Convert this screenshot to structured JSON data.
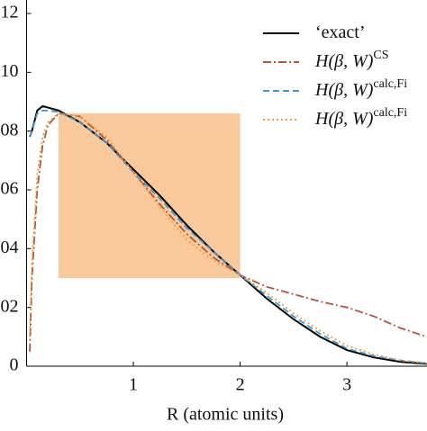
{
  "chart_data": {
    "type": "line",
    "x_label": "R (atomic units)",
    "x": [
      0.03,
      0.05,
      0.1,
      0.15,
      0.2,
      0.3,
      0.5,
      0.75,
      1.0,
      1.25,
      1.5,
      1.75,
      2.0,
      2.25,
      2.5,
      2.75,
      3.0,
      3.25,
      3.5,
      3.75
    ],
    "series": [
      {
        "name": "‘exact’",
        "color": "#000000",
        "dash": "solid",
        "values": [
          0.078,
          0.08,
          0.087,
          0.0885,
          0.088,
          0.087,
          0.083,
          0.076,
          0.067,
          0.058,
          0.048,
          0.039,
          0.031,
          0.023,
          0.016,
          0.01,
          0.0055,
          0.003,
          0.0015,
          0.0008
        ]
      },
      {
        "name": "H(β, W)",
        "superscript": "CS",
        "color": "#b5533c",
        "dash": "dashdot",
        "values": [
          0.005,
          0.03,
          0.06,
          0.075,
          0.082,
          0.086,
          0.085,
          0.077,
          0.066,
          0.055,
          0.045,
          0.037,
          0.031,
          0.027,
          0.0245,
          0.022,
          0.02,
          0.017,
          0.013,
          0.01
        ]
      },
      {
        "name": "H(β, W)",
        "superscript": "calc,Fi",
        "color": "#3a9ad9",
        "dash": "dashed",
        "values": [
          0.078,
          0.08,
          0.086,
          0.087,
          0.087,
          0.0865,
          0.083,
          0.076,
          0.066,
          0.057,
          0.047,
          0.039,
          0.031,
          0.024,
          0.017,
          0.011,
          0.006,
          0.0035,
          0.002,
          0.001
        ]
      },
      {
        "name": "H(β, W)",
        "superscript": "calc,Fi",
        "color": "#f0a030",
        "dash": "dotted",
        "values": [
          0.01,
          0.035,
          0.065,
          0.078,
          0.083,
          0.086,
          0.085,
          0.078,
          0.066,
          0.054,
          0.043,
          0.036,
          0.031,
          0.025,
          0.018,
          0.012,
          0.007,
          0.004,
          0.002,
          0.001
        ]
      }
    ],
    "highlight": {
      "xlim": [
        0.3,
        2.0
      ],
      "ylim": [
        0.03,
        0.086
      ],
      "color": "#f9c08a"
    },
    "xlim": [
      0,
      3.75
    ],
    "ylim": [
      0,
      0.1246
    ],
    "xticks": [
      1,
      2,
      3
    ],
    "yticks": [
      0,
      {
        "value": 0.02,
        "label": "02"
      },
      {
        "value": 0.04,
        "label": "04"
      },
      {
        "value": 0.06,
        "label": "06"
      },
      {
        "value": 0.08,
        "label": "08"
      },
      {
        "value": 0.1,
        "label": "10"
      },
      {
        "value": 0.12,
        "label": "12"
      }
    ],
    "legend": "upper right"
  }
}
